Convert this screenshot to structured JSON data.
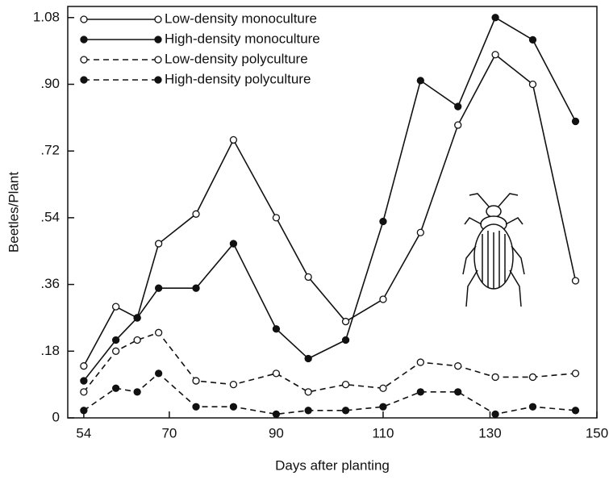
{
  "chart_data": {
    "type": "line",
    "x_label": "Days after planting",
    "y_label": "Beetles/Plant",
    "x": [
      54,
      60,
      64,
      68,
      75,
      82,
      90,
      96,
      103,
      110,
      117,
      124,
      131,
      138,
      146
    ],
    "series": [
      {
        "name": "Low-density monoculture",
        "color": "#111111",
        "line_style": "solid",
        "marker": "open",
        "values": [
          0.14,
          0.3,
          0.27,
          0.47,
          0.55,
          0.75,
          0.54,
          0.38,
          0.26,
          0.32,
          0.5,
          0.79,
          0.98,
          0.9,
          0.37
        ]
      },
      {
        "name": "High-density monoculture",
        "color": "#111111",
        "line_style": "solid",
        "marker": "filled",
        "values": [
          0.1,
          0.21,
          0.27,
          0.35,
          0.35,
          0.47,
          0.24,
          0.16,
          0.21,
          0.53,
          0.91,
          0.84,
          1.08,
          1.02,
          0.8
        ]
      },
      {
        "name": "Low-density polyculture",
        "color": "#111111",
        "line_style": "dashed",
        "marker": "open",
        "values": [
          0.07,
          0.18,
          0.21,
          0.23,
          0.1,
          0.09,
          0.12,
          0.07,
          0.09,
          0.08,
          0.15,
          0.14,
          0.11,
          0.11,
          0.12
        ]
      },
      {
        "name": "High-density polyculture",
        "color": "#111111",
        "line_style": "dashed",
        "marker": "filled",
        "values": [
          0.02,
          0.08,
          0.07,
          0.12,
          0.03,
          0.03,
          0.01,
          0.02,
          0.02,
          0.03,
          0.07,
          0.07,
          0.01,
          0.03,
          0.02
        ]
      }
    ],
    "xlim": [
      51,
      150
    ],
    "xticks": [
      54,
      70,
      90,
      110,
      130,
      150
    ],
    "ylim": [
      0,
      1.11
    ],
    "yticks": [
      0,
      {
        "value": 0.18,
        "label": ".18"
      },
      {
        "value": 0.36,
        "label": ".36"
      },
      {
        "value": 0.54,
        "label": ".54"
      },
      {
        "value": 0.72,
        "label": ".72"
      },
      {
        "value": 0.9,
        "label": ".90"
      },
      1.08
    ],
    "legend": "upper left"
  }
}
